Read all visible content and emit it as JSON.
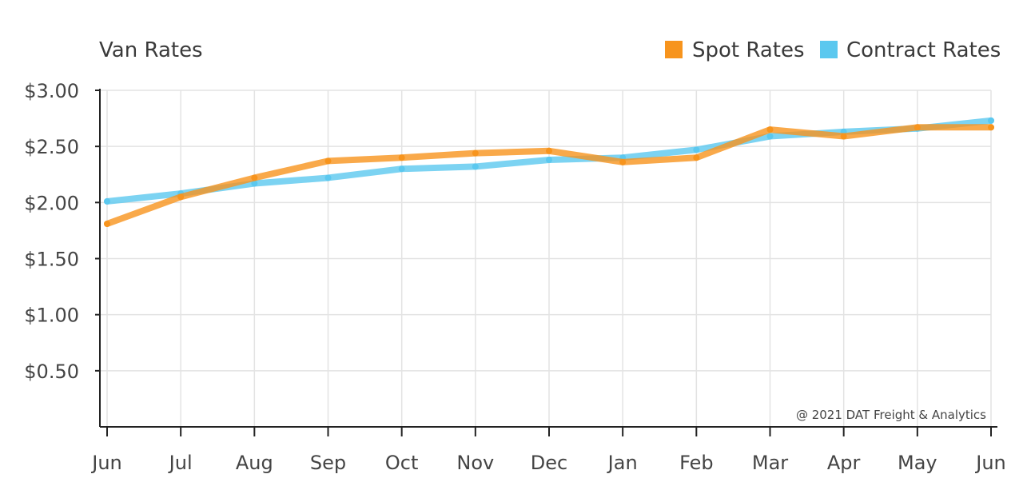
{
  "chart_data": {
    "type": "line",
    "title": "Van Rates",
    "categories": [
      "Jun",
      "Jul",
      "Aug",
      "Sep",
      "Oct",
      "Nov",
      "Dec",
      "Jan",
      "Feb",
      "Mar",
      "Apr",
      "May",
      "Jun"
    ],
    "series": [
      {
        "name": "Spot Rates",
        "color": "#f7941d",
        "values": [
          1.81,
          2.05,
          2.22,
          2.37,
          2.4,
          2.44,
          2.46,
          2.36,
          2.4,
          2.65,
          2.59,
          2.67,
          2.67
        ]
      },
      {
        "name": "Contract Rates",
        "color": "#5bc8ef",
        "values": [
          2.01,
          2.08,
          2.17,
          2.22,
          2.3,
          2.32,
          2.38,
          2.4,
          2.47,
          2.59,
          2.63,
          2.66,
          2.73
        ]
      }
    ],
    "ylim": [
      0,
      3.0
    ],
    "yticks": [
      {
        "value": 3.0,
        "label": "$3.00"
      },
      {
        "value": 2.5,
        "label": "$2.50"
      },
      {
        "value": 2.0,
        "label": "$2.00"
      },
      {
        "value": 1.5,
        "label": "$1.50"
      },
      {
        "value": 1.0,
        "label": "$1.00"
      },
      {
        "value": 0.5,
        "label": "$0.50"
      }
    ],
    "grid": true,
    "legend_position": "top-right",
    "credit": "@ 2021 DAT Freight & Analytics"
  }
}
